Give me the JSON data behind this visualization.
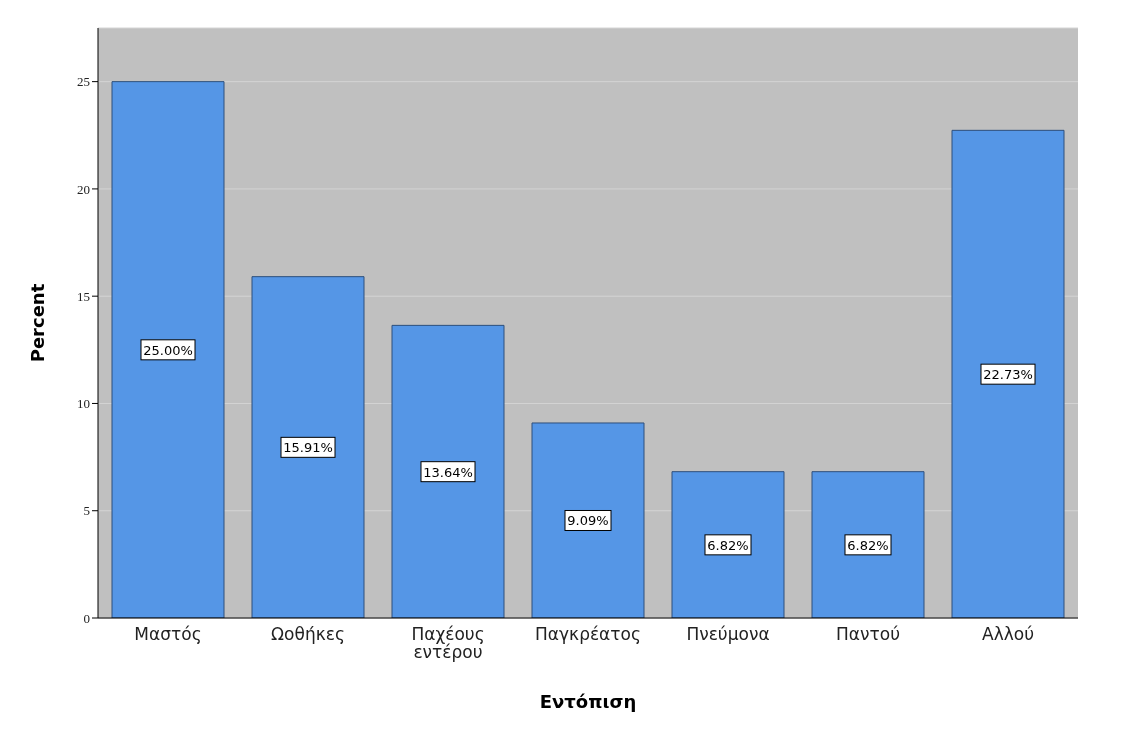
{
  "chart_data": {
    "type": "bar",
    "xlabel": "Εντόπιση",
    "ylabel": "Percent",
    "categories": [
      "Μαστός",
      "Ωοθήκες",
      "Παχέους εντέρου",
      "Παγκρέατος",
      "Πνεύμονα",
      "Παντού",
      "Αλλού"
    ],
    "values": [
      25.0,
      15.91,
      13.64,
      9.09,
      6.82,
      6.82,
      22.73
    ],
    "value_labels": [
      "25.00%",
      "15.91%",
      "13.64%",
      "9.09%",
      "6.82%",
      "6.82%",
      "22.73%"
    ],
    "color": "#5596e6",
    "ylim": [
      0,
      27.5
    ],
    "yticks": [
      0,
      5,
      10,
      15,
      20,
      25
    ],
    "grid": "y"
  }
}
